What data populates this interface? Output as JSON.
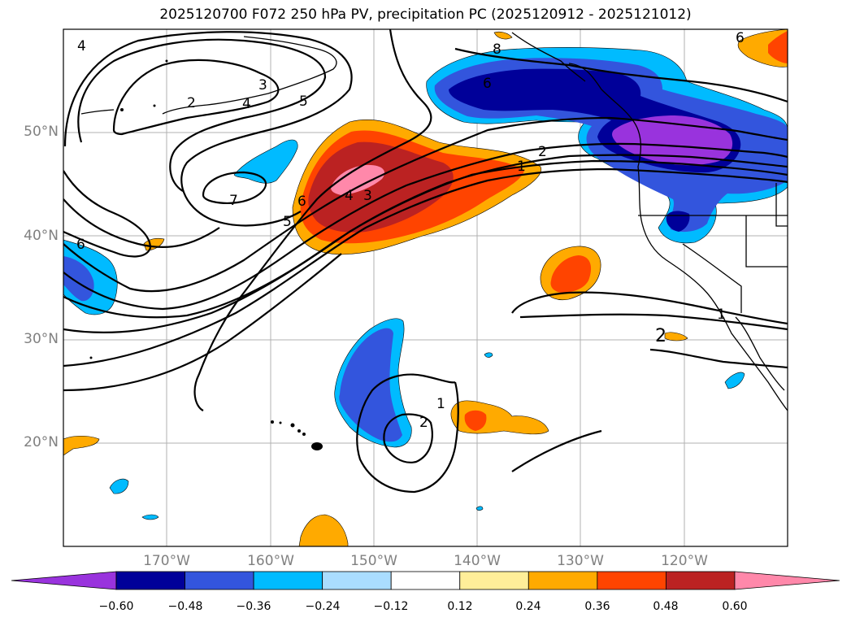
{
  "title": "2025120700 F072 250 hPa PV, precipitation PC (2025120912 - 2025121012)",
  "lat_labels": [
    "50°N",
    "40°N",
    "30°N",
    "20°N"
  ],
  "lon_labels": [
    "170°W",
    "160°W",
    "150°W",
    "140°W",
    "130°W",
    "120°W"
  ],
  "colorbar": {
    "ticks": [
      "−0.60",
      "−0.48",
      "−0.36",
      "−0.24",
      "−0.12",
      "0.12",
      "0.24",
      "0.36",
      "0.48",
      "0.60"
    ],
    "colors": [
      "#9933dd",
      "#000099",
      "#3355dd",
      "#00bbff",
      "#aaddff",
      "#ffffff",
      "#ffee99",
      "#ffaa00",
      "#ff4400",
      "#bb2222",
      "#ff88aa"
    ]
  },
  "pv_contour_labels": [
    "4",
    "2",
    "3",
    "4",
    "5",
    "8",
    "6",
    "6",
    "7",
    "6",
    "5",
    "4",
    "3",
    "2",
    "1",
    "6",
    "1",
    "2",
    "1",
    "2"
  ]
}
